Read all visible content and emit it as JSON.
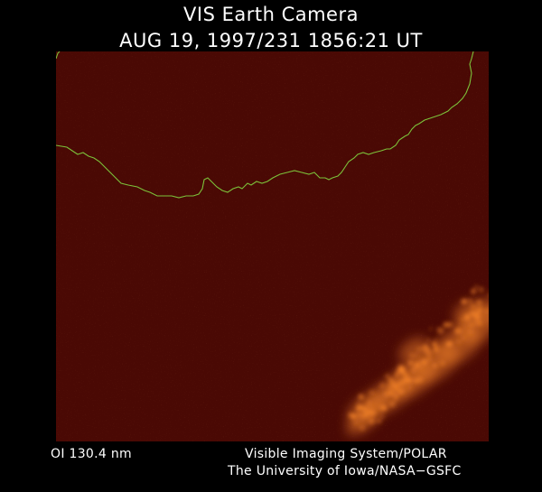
{
  "header": {
    "title": "VIS Earth Camera",
    "timestamp": "AUG 19, 1997/231 1856:21 UT"
  },
  "image": {
    "background_color": "#4a0904",
    "coastline_color": "#7cc23a",
    "aurora_color": "#ff8a2a"
  },
  "footer": {
    "band": "OI  130.4 nm",
    "instrument": "Visible Imaging System/POLAR",
    "institution": "The University of Iowa/NASA−GSFC"
  }
}
